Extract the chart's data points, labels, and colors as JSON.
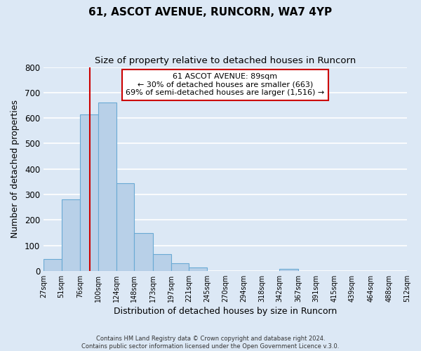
{
  "title": "61, ASCOT AVENUE, RUNCORN, WA7 4YP",
  "subtitle": "Size of property relative to detached houses in Runcorn",
  "xlabel": "Distribution of detached houses by size in Runcorn",
  "ylabel": "Number of detached properties",
  "bin_edges": [
    27,
    51,
    76,
    100,
    124,
    148,
    173,
    197,
    221,
    245,
    270,
    294,
    318,
    342,
    367,
    391,
    415,
    439,
    464,
    488,
    512
  ],
  "bar_heights": [
    45,
    280,
    615,
    660,
    345,
    148,
    65,
    30,
    12,
    0,
    0,
    0,
    0,
    8,
    0,
    0,
    0,
    0,
    0,
    0
  ],
  "bar_color": "#b8d0e8",
  "bar_edge_color": "#6aaad4",
  "property_value": 89,
  "vline_color": "#cc0000",
  "annotation_line1": "61 ASCOT AVENUE: 89sqm",
  "annotation_line2": "← 30% of detached houses are smaller (663)",
  "annotation_line3": "69% of semi-detached houses are larger (1,516) →",
  "annotation_box_color": "#ffffff",
  "annotation_box_edge": "#cc0000",
  "footer_text": "Contains HM Land Registry data © Crown copyright and database right 2024.\nContains public sector information licensed under the Open Government Licence v.3.0.",
  "ylim": [
    0,
    800
  ],
  "background_color": "#dce8f5",
  "plot_bg_color": "#dce8f5",
  "grid_color": "#ffffff",
  "title_fontsize": 11,
  "subtitle_fontsize": 9.5,
  "tick_labels": [
    "27sqm",
    "51sqm",
    "76sqm",
    "100sqm",
    "124sqm",
    "148sqm",
    "173sqm",
    "197sqm",
    "221sqm",
    "245sqm",
    "270sqm",
    "294sqm",
    "318sqm",
    "342sqm",
    "367sqm",
    "391sqm",
    "415sqm",
    "439sqm",
    "464sqm",
    "488sqm",
    "512sqm"
  ]
}
